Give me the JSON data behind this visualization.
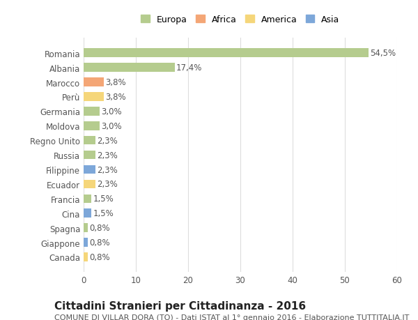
{
  "countries": [
    "Romania",
    "Albania",
    "Marocco",
    "Perù",
    "Germania",
    "Moldova",
    "Regno Unito",
    "Russia",
    "Filippine",
    "Ecuador",
    "Francia",
    "Cina",
    "Spagna",
    "Giappone",
    "Canada"
  ],
  "values": [
    54.5,
    17.4,
    3.8,
    3.8,
    3.0,
    3.0,
    2.3,
    2.3,
    2.3,
    2.3,
    1.5,
    1.5,
    0.8,
    0.8,
    0.8
  ],
  "labels": [
    "54,5%",
    "17,4%",
    "3,8%",
    "3,8%",
    "3,0%",
    "3,0%",
    "2,3%",
    "2,3%",
    "2,3%",
    "2,3%",
    "1,5%",
    "1,5%",
    "0,8%",
    "0,8%",
    "0,8%"
  ],
  "continents": [
    "Europa",
    "Europa",
    "Africa",
    "America",
    "Europa",
    "Europa",
    "Europa",
    "Europa",
    "Asia",
    "America",
    "Europa",
    "Asia",
    "Europa",
    "Asia",
    "America"
  ],
  "continent_colors": {
    "Europa": "#b5cc8e",
    "Africa": "#f4a676",
    "America": "#f5d67a",
    "Asia": "#7da7d9"
  },
  "legend_order": [
    "Europa",
    "Africa",
    "America",
    "Asia"
  ],
  "legend_colors": [
    "#b5cc8e",
    "#f4a676",
    "#f5d67a",
    "#7da7d9"
  ],
  "xlim": [
    0,
    60
  ],
  "xticks": [
    0,
    10,
    20,
    30,
    40,
    50,
    60
  ],
  "title": "Cittadini Stranieri per Cittadinanza - 2016",
  "subtitle": "COMUNE DI VILLAR DORA (TO) - Dati ISTAT al 1° gennaio 2016 - Elaborazione TUTTITALIA.IT",
  "bg_color": "#ffffff",
  "grid_color": "#dddddd",
  "bar_height": 0.6,
  "title_fontsize": 11,
  "subtitle_fontsize": 8,
  "label_fontsize": 8.5,
  "tick_fontsize": 8.5
}
